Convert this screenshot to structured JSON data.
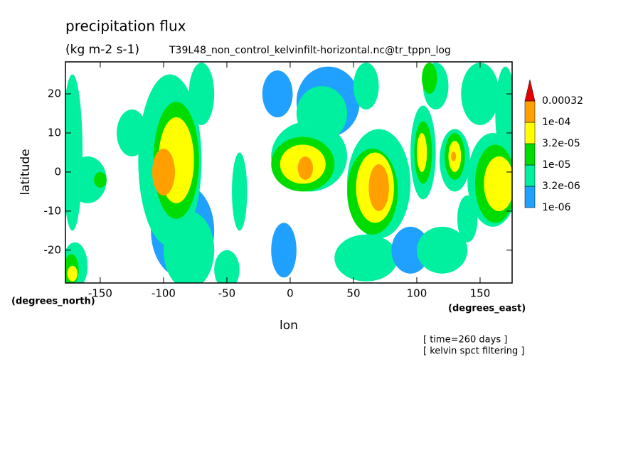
{
  "chart_data": {
    "type": "contour",
    "title": "precipitation flux",
    "units": "(kg m-2 s-1)",
    "subtitle": "T39L48_non_control_kelvinfilt-horizontal.nc@tr_tppn_log",
    "x_label": "lon",
    "y_label": "latitude",
    "x_units": "(degrees_east)",
    "y_units": "(degrees_north)",
    "notes": [
      "[ time=260 days ]",
      "[ kelvin spct filtering ]"
    ],
    "xlim": [
      -177.5,
      175.3
    ],
    "ylim": [
      -28.4,
      28.2
    ],
    "xticks": [
      -150,
      -100,
      -50,
      0,
      50,
      100,
      150
    ],
    "yticks": [
      -20,
      -10,
      0,
      10,
      20
    ],
    "colorbar": {
      "levels": [
        {
          "value": 1e-06,
          "label": "1e-06"
        },
        {
          "value": 3.2e-06,
          "label": "3.2e-06"
        },
        {
          "value": 1e-05,
          "label": "1e-05"
        },
        {
          "value": 3.2e-05,
          "label": "3.2e-05"
        },
        {
          "value": 0.0001,
          "label": "1e-04"
        },
        0.00032
      ],
      "colors": [
        "#20a0ff",
        "#00f0a0",
        "#00dc00",
        "#ffff00",
        "#ffa000",
        "#e60000"
      ]
    },
    "regions": [
      {
        "lon": -172,
        "lat": 5,
        "rx": 8,
        "ry": 20,
        "level": 1
      },
      {
        "lon": -160,
        "lat": -2,
        "rx": 15,
        "ry": 6,
        "level": 1
      },
      {
        "lon": -150,
        "lat": -2,
        "rx": 5,
        "ry": 2,
        "level": 2
      },
      {
        "lon": -125,
        "lat": 10,
        "rx": 12,
        "ry": 6,
        "level": 1
      },
      {
        "lon": -85,
        "lat": -15,
        "rx": 25,
        "ry": 12,
        "level": 0
      },
      {
        "lon": -80,
        "lat": -20,
        "rx": 20,
        "ry": 10,
        "level": 1
      },
      {
        "lon": -95,
        "lat": 3,
        "rx": 25,
        "ry": 22,
        "level": 1
      },
      {
        "lon": -90,
        "lat": 3,
        "rx": 18,
        "ry": 15,
        "level": 2
      },
      {
        "lon": -90,
        "lat": 3,
        "rx": 14,
        "ry": 11,
        "level": 3
      },
      {
        "lon": -100,
        "lat": 0,
        "rx": 9,
        "ry": 6,
        "level": 4
      },
      {
        "lon": -70,
        "lat": 20,
        "rx": 10,
        "ry": 8,
        "level": 1
      },
      {
        "lon": -170,
        "lat": -24,
        "rx": 10,
        "ry": 6,
        "level": 1
      },
      {
        "lon": -173,
        "lat": -25,
        "rx": 6,
        "ry": 4,
        "level": 2
      },
      {
        "lon": -172,
        "lat": -26,
        "rx": 4,
        "ry": 2,
        "level": 3
      },
      {
        "lon": -50,
        "lat": -25,
        "rx": 10,
        "ry": 5,
        "level": 1
      },
      {
        "lon": -40,
        "lat": -5,
        "rx": 6,
        "ry": 10,
        "level": 1
      },
      {
        "lon": -10,
        "lat": 20,
        "rx": 12,
        "ry": 6,
        "level": 0
      },
      {
        "lon": -5,
        "lat": -20,
        "rx": 10,
        "ry": 7,
        "level": 0
      },
      {
        "lon": 30,
        "lat": 18,
        "rx": 25,
        "ry": 9,
        "level": 0
      },
      {
        "lon": 25,
        "lat": 15,
        "rx": 20,
        "ry": 7,
        "level": 1
      },
      {
        "lon": 15,
        "lat": 4,
        "rx": 30,
        "ry": 9,
        "level": 1
      },
      {
        "lon": 10,
        "lat": 2,
        "rx": 25,
        "ry": 7,
        "level": 2
      },
      {
        "lon": 10,
        "lat": 2,
        "rx": 18,
        "ry": 5,
        "level": 3
      },
      {
        "lon": 12,
        "lat": 1,
        "rx": 6,
        "ry": 3,
        "level": 4
      },
      {
        "lon": 60,
        "lat": 22,
        "rx": 10,
        "ry": 6,
        "level": 1
      },
      {
        "lon": 60,
        "lat": -22,
        "rx": 25,
        "ry": 6,
        "level": 1
      },
      {
        "lon": 70,
        "lat": -3,
        "rx": 25,
        "ry": 14,
        "level": 1
      },
      {
        "lon": 65,
        "lat": -5,
        "rx": 20,
        "ry": 11,
        "level": 2
      },
      {
        "lon": 67,
        "lat": -4,
        "rx": 15,
        "ry": 9,
        "level": 3
      },
      {
        "lon": 70,
        "lat": -4,
        "rx": 8,
        "ry": 6,
        "level": 4
      },
      {
        "lon": 95,
        "lat": -20,
        "rx": 15,
        "ry": 6,
        "level": 0
      },
      {
        "lon": 120,
        "lat": -20,
        "rx": 20,
        "ry": 6,
        "level": 1
      },
      {
        "lon": 105,
        "lat": 5,
        "rx": 10,
        "ry": 12,
        "level": 1
      },
      {
        "lon": 105,
        "lat": 5,
        "rx": 7,
        "ry": 8,
        "level": 2
      },
      {
        "lon": 104,
        "lat": 5,
        "rx": 4,
        "ry": 5,
        "level": 3
      },
      {
        "lon": 115,
        "lat": 22,
        "rx": 10,
        "ry": 6,
        "level": 1
      },
      {
        "lon": 110,
        "lat": 24,
        "rx": 6,
        "ry": 4,
        "level": 2
      },
      {
        "lon": 150,
        "lat": 20,
        "rx": 15,
        "ry": 8,
        "level": 1
      },
      {
        "lon": 170,
        "lat": 15,
        "rx": 8,
        "ry": 12,
        "level": 1
      },
      {
        "lon": 140,
        "lat": -12,
        "rx": 8,
        "ry": 6,
        "level": 1
      },
      {
        "lon": 130,
        "lat": 3,
        "rx": 12,
        "ry": 8,
        "level": 1
      },
      {
        "lon": 130,
        "lat": 4,
        "rx": 8,
        "ry": 6,
        "level": 2
      },
      {
        "lon": 130,
        "lat": 4,
        "rx": 5,
        "ry": 4,
        "level": 3
      },
      {
        "lon": 129,
        "lat": 4,
        "rx": 2,
        "ry": 1.2,
        "level": 4
      },
      {
        "lon": 160,
        "lat": -2,
        "rx": 20,
        "ry": 12,
        "level": 1
      },
      {
        "lon": 162,
        "lat": -3,
        "rx": 16,
        "ry": 10,
        "level": 2
      },
      {
        "lon": 165,
        "lat": -3,
        "rx": 12,
        "ry": 7,
        "level": 3
      }
    ]
  }
}
